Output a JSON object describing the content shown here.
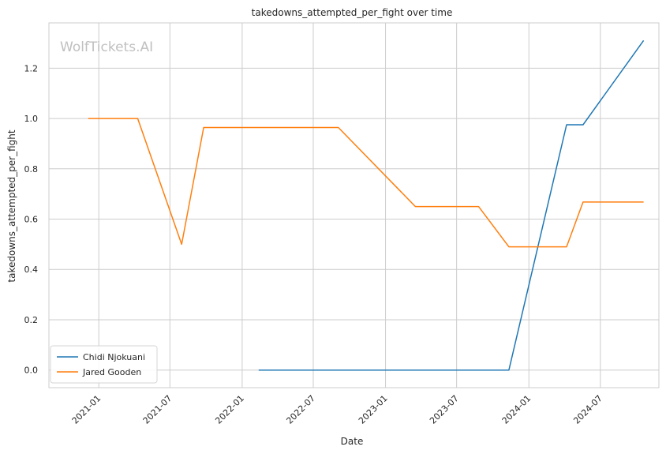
{
  "watermark": "WolfTickets.AI",
  "chart_data": {
    "type": "line",
    "title": "takedowns_attempted_per_fight over time",
    "xlabel": "Date",
    "ylabel": "takedowns_attempted_per_fight",
    "x_type": "date",
    "xlim": [
      "2020-08-27",
      "2024-11-27"
    ],
    "ylim": [
      -0.07,
      1.38
    ],
    "x_ticks": [
      "2021-01",
      "2021-07",
      "2022-01",
      "2022-07",
      "2023-01",
      "2023-07",
      "2024-01",
      "2024-07"
    ],
    "y_ticks": [
      "0.0",
      "0.2",
      "0.4",
      "0.6",
      "0.8",
      "1.0",
      "1.2"
    ],
    "grid": true,
    "legend_position": "lower-left",
    "series": [
      {
        "name": "Chidi Njokuani",
        "color": "#1f77b4",
        "points": [
          {
            "x": "2022-02-12",
            "y": 0.0
          },
          {
            "x": "2023-11-11",
            "y": 0.0
          },
          {
            "x": "2024-04-06",
            "y": 0.975
          },
          {
            "x": "2024-05-18",
            "y": 0.975
          },
          {
            "x": "2024-10-19",
            "y": 1.31
          }
        ]
      },
      {
        "name": "Jared Gooden",
        "color": "#ff7f0e",
        "points": [
          {
            "x": "2020-12-05",
            "y": 1.0
          },
          {
            "x": "2021-04-10",
            "y": 1.0
          },
          {
            "x": "2021-07-31",
            "y": 0.5
          },
          {
            "x": "2021-09-25",
            "y": 0.964
          },
          {
            "x": "2022-09-03",
            "y": 0.964
          },
          {
            "x": "2023-03-18",
            "y": 0.65
          },
          {
            "x": "2023-08-26",
            "y": 0.65
          },
          {
            "x": "2023-11-11",
            "y": 0.49
          },
          {
            "x": "2024-04-06",
            "y": 0.49
          },
          {
            "x": "2024-05-18",
            "y": 0.668
          },
          {
            "x": "2024-10-19",
            "y": 0.668
          }
        ]
      }
    ]
  }
}
